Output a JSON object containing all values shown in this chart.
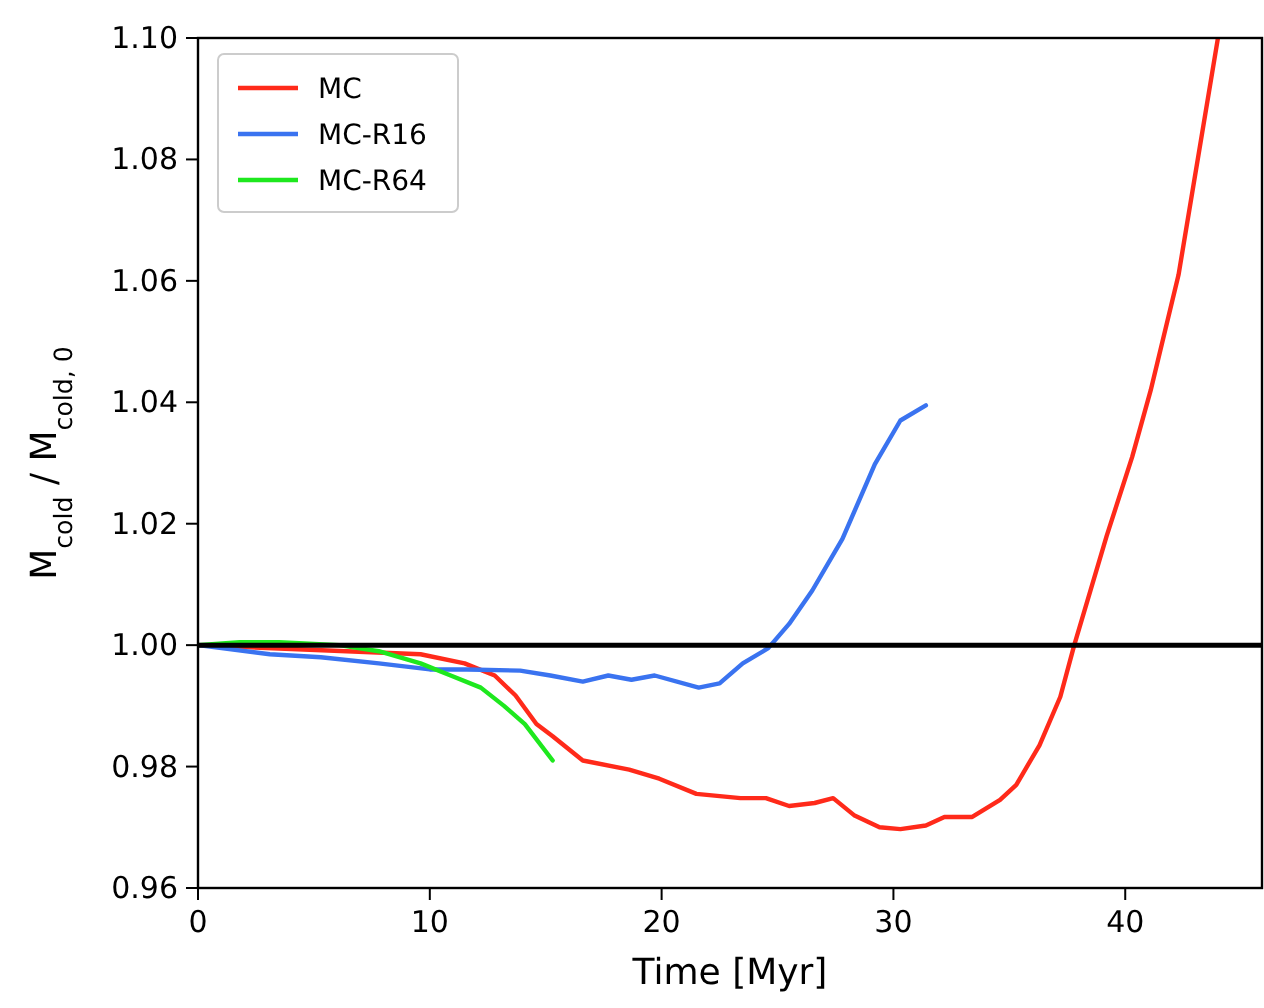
{
  "chart_data": {
    "type": "line",
    "xlabel": "Time [Myr]",
    "ylabel": "M$_{cold}$ / M$_{cold, 0}$",
    "xlim": [
      0,
      45.9
    ],
    "xticks": [
      0,
      10,
      20,
      30,
      40
    ],
    "ylim": [
      0.96,
      1.1
    ],
    "yticks": [
      {
        "value": 0.96,
        "label": "0.96"
      },
      {
        "value": 0.98,
        "label": "0.98"
      },
      {
        "value": 1,
        "label": "1.00"
      },
      {
        "value": 1.02,
        "label": "1.02"
      },
      {
        "value": 1.04,
        "label": "1.04"
      },
      {
        "value": 1.06,
        "label": "1.06"
      },
      {
        "value": 1.08,
        "label": "1.08"
      },
      {
        "value": 1.1,
        "label": "1.10"
      }
    ],
    "grid": false,
    "legend": "top left",
    "marker": "none",
    "line_style": "solid",
    "ref_lines": [
      {
        "axis": "y",
        "value": 1,
        "color": "#000000"
      }
    ],
    "series": [
      {
        "name": "MC",
        "color": "#ff2a1a",
        "x": [
          0,
          9.6,
          11.5,
          12.8,
          13.7,
          14.6,
          15.3,
          16.6,
          18.6,
          19.9,
          21.5,
          23.4,
          24.5,
          25.5,
          26.6,
          27.4,
          28.3,
          29.4,
          30.3,
          31.4,
          32.2,
          33.4,
          34.6,
          35.3,
          36.3,
          37.2,
          37.8,
          39.2,
          40.3,
          41.1,
          42.3,
          44.0
        ],
        "values": [
          1.0,
          0.9985,
          0.997,
          0.995,
          0.9917,
          0.987,
          0.985,
          0.981,
          0.9795,
          0.978,
          0.9755,
          0.9748,
          0.9748,
          0.9735,
          0.974,
          0.9748,
          0.972,
          0.97,
          0.9697,
          0.9703,
          0.9717,
          0.9717,
          0.9745,
          0.977,
          0.9835,
          0.9915,
          1.0,
          1.018,
          1.031,
          1.042,
          1.061,
          1.1
        ]
      },
      {
        "name": "MC-R16",
        "color": "#3a73f0",
        "x": [
          0,
          3.1,
          5.3,
          7.8,
          10,
          11.6,
          13.9,
          15.2,
          16.6,
          17.7,
          18.7,
          19.7,
          21.6,
          22.5,
          23.5,
          24.6,
          25.5,
          26.5,
          27.8,
          29.2,
          30.3,
          31.4
        ],
        "values": [
          1.0,
          0.9985,
          0.998,
          0.997,
          0.996,
          0.996,
          0.9958,
          0.995,
          0.994,
          0.995,
          0.9943,
          0.995,
          0.993,
          0.9937,
          0.997,
          0.9995,
          1.0035,
          1.009,
          1.0175,
          1.0298,
          1.037,
          1.0395
        ]
      },
      {
        "name": "MC-R64",
        "color": "#1ee81e",
        "x": [
          0,
          1.8,
          3.5,
          6.1,
          7.8,
          9.6,
          10.9,
          12.2,
          13.2,
          14.1,
          15.3
        ],
        "values": [
          1.0,
          1.0005,
          1.0005,
          1.0,
          0.999,
          0.997,
          0.995,
          0.993,
          0.99,
          0.987,
          0.981
        ]
      }
    ]
  }
}
